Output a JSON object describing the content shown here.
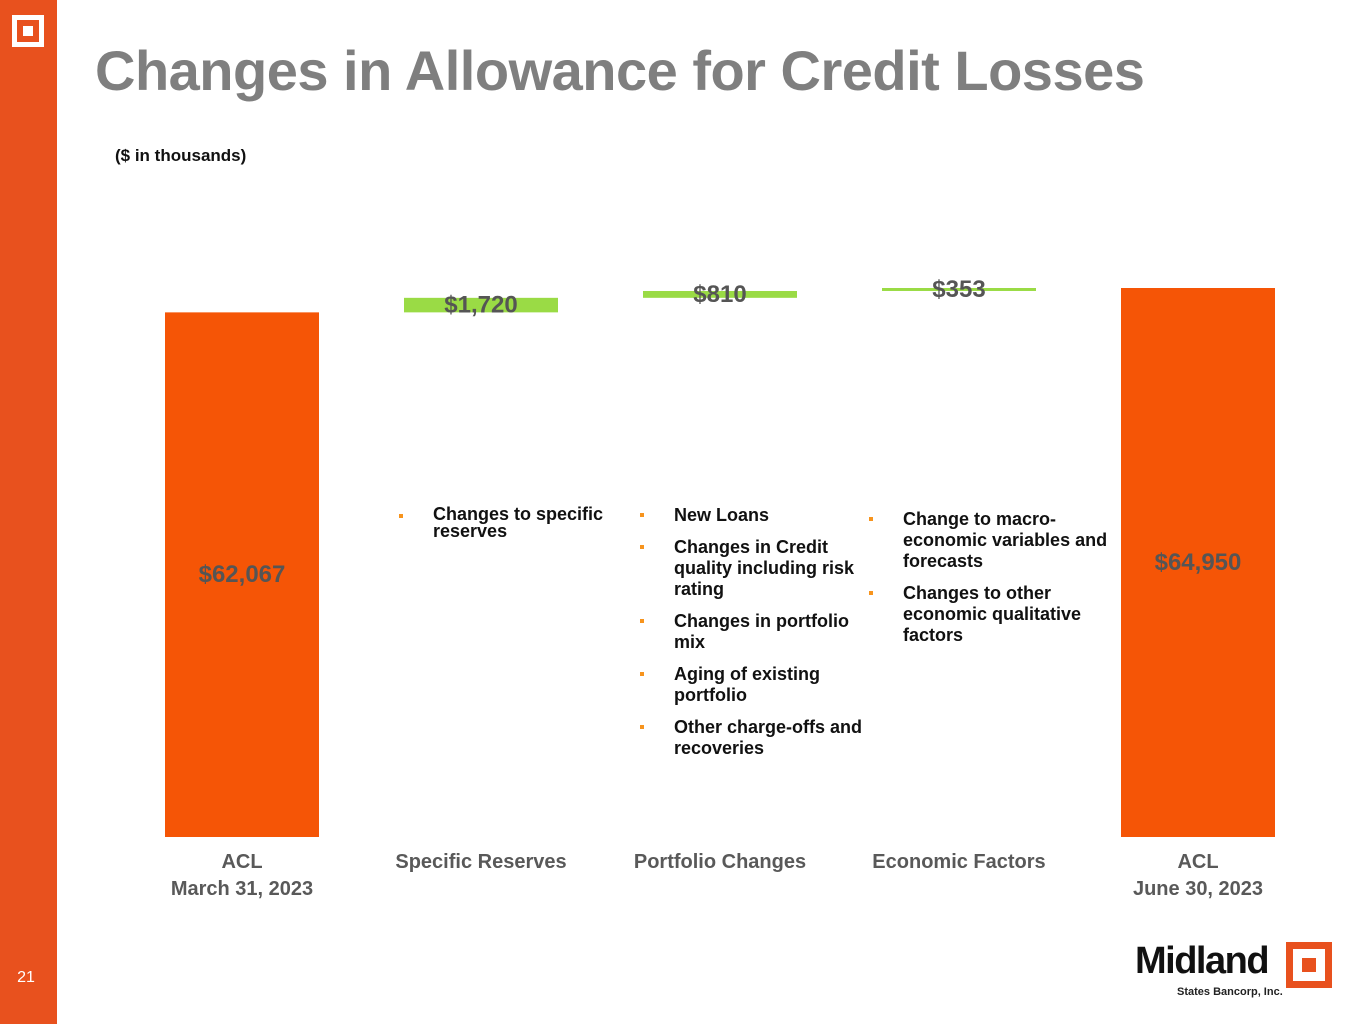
{
  "slide": {
    "title": "Changes in Allowance for Credit Losses",
    "units_note": "($ in thousands)",
    "page_number": "21"
  },
  "brand": {
    "name": "Midland",
    "subtitle": "States Bancorp, Inc.",
    "accent_color": "#E8511E"
  },
  "chart_data": {
    "type": "bar",
    "subtype": "waterfall",
    "title": "Changes in Allowance for Credit Losses",
    "ylabel": "($ in thousands)",
    "categories": [
      [
        "ACL",
        "March 31, 2023"
      ],
      [
        "Specific Reserves"
      ],
      [
        "Portfolio Changes"
      ],
      [
        "Economic Factors"
      ],
      [
        "ACL",
        "June 30, 2023"
      ]
    ],
    "values": [
      62067,
      1720,
      810,
      353,
      64950
    ],
    "bar_roles": [
      "total",
      "increase",
      "increase",
      "increase",
      "total"
    ],
    "value_labels": [
      "$62,067",
      "$1,720",
      "$810",
      "$353",
      "$64,950"
    ],
    "ylim": [
      0,
      64950
    ],
    "colors": {
      "total": "#F55506",
      "increase": "#9ADB45",
      "label": "#555555"
    },
    "grid": false,
    "legend": "none"
  },
  "notes": {
    "specific_reserves": [
      "Changes to specific reserves"
    ],
    "portfolio_changes": [
      "New Loans",
      "Changes in Credit quality including risk rating",
      "Changes in portfolio mix",
      "Aging of existing portfolio",
      "Other charge-offs and recoveries"
    ],
    "economic_factors": [
      "Change to macro-economic variables and forecasts",
      "Changes to other economic qualitative factors"
    ]
  }
}
